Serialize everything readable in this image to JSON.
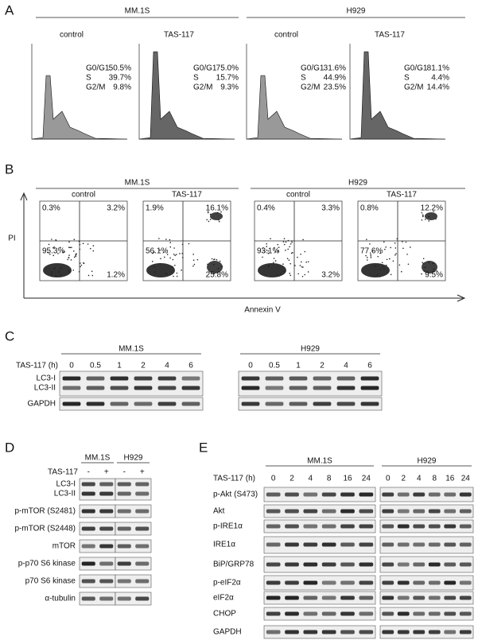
{
  "A": {
    "label": "A",
    "groups": [
      {
        "name": "MM.1S",
        "plots": [
          {
            "title": "control",
            "stats": [
              {
                "phase": "G0/G1",
                "pct": "50.5%"
              },
              {
                "phase": "S",
                "pct": "39.7%"
              },
              {
                "phase": "G2/M",
                "pct": "9.8%"
              }
            ]
          },
          {
            "title": "TAS-117",
            "stats": [
              {
                "phase": "G0/G1",
                "pct": "75.0%"
              },
              {
                "phase": "S",
                "pct": "15.7%"
              },
              {
                "phase": "G2/M",
                "pct": "9.3%"
              }
            ]
          }
        ]
      },
      {
        "name": "H929",
        "plots": [
          {
            "title": "control",
            "stats": [
              {
                "phase": "G0/G1",
                "pct": "31.6%"
              },
              {
                "phase": "S",
                "pct": "44.9%"
              },
              {
                "phase": "G2/M",
                "pct": "23.5%"
              }
            ]
          },
          {
            "title": "TAS-117",
            "stats": [
              {
                "phase": "G0/G1",
                "pct": "81.1%"
              },
              {
                "phase": "S",
                "pct": "4.4%"
              },
              {
                "phase": "G2/M",
                "pct": "14.4%"
              }
            ]
          }
        ]
      }
    ]
  },
  "B": {
    "label": "B",
    "y_axis": "PI",
    "x_axis": "Annexin V",
    "groups": [
      {
        "name": "MM.1S",
        "plots": [
          {
            "title": "control",
            "quadrants": {
              "upper_left": "0.3%",
              "upper_right": "3.2%",
              "lower_left": "95.3%",
              "lower_right": "1.2%"
            }
          },
          {
            "title": "TAS-117",
            "quadrants": {
              "upper_left": "1.9%",
              "upper_right": "16.1%",
              "lower_left": "56.1%",
              "lower_right": "25.8%"
            }
          }
        ]
      },
      {
        "name": "H929",
        "plots": [
          {
            "title": "control",
            "quadrants": {
              "upper_left": "0.4%",
              "upper_right": "3.3%",
              "lower_left": "93.1%",
              "lower_right": "3.2%"
            }
          },
          {
            "title": "TAS-117",
            "quadrants": {
              "upper_left": "0.8%",
              "upper_right": "12.2%",
              "lower_left": "77.6%",
              "lower_right": "9.5%"
            }
          }
        ]
      }
    ]
  },
  "C": {
    "label": "C",
    "treatment": "TAS-117 (h)",
    "groups": [
      {
        "name": "MM.1S",
        "lanes": [
          "0",
          "0.5",
          "1",
          "2",
          "4",
          "6"
        ]
      },
      {
        "name": "H929",
        "lanes": [
          "0",
          "0.5",
          "1",
          "2",
          "4",
          "6"
        ]
      }
    ],
    "rows": [
      "LC3-I",
      "LC3-II",
      "GAPDH"
    ]
  },
  "D": {
    "label": "D",
    "treatment": "TAS-117",
    "groups": [
      {
        "name": "MM.1S",
        "lanes": [
          "-",
          "+"
        ]
      },
      {
        "name": "H929",
        "lanes": [
          "-",
          "+"
        ]
      }
    ],
    "rows": [
      "LC3-I",
      "LC3-II",
      "p-mTOR (S2481)",
      "p-mTOR (S2448)",
      "mTOR",
      "p-p70 S6 kinase",
      "p70 S6 kinase",
      "α-tubulin"
    ]
  },
  "E": {
    "label": "E",
    "treatment": "TAS-117 (h)",
    "groups": [
      {
        "name": "MM.1S",
        "lanes": [
          "0",
          "2",
          "4",
          "8",
          "16",
          "24"
        ]
      },
      {
        "name": "H929",
        "lanes": [
          "0",
          "2",
          "4",
          "8",
          "16",
          "24"
        ]
      }
    ],
    "rows": [
      "p-Akt (S473)",
      "Akt",
      "p-IRE1α",
      "IRE1α",
      "BiP/GRP78",
      "p-eIF2α",
      "eIF2α",
      "CHOP",
      "GAPDH"
    ]
  }
}
